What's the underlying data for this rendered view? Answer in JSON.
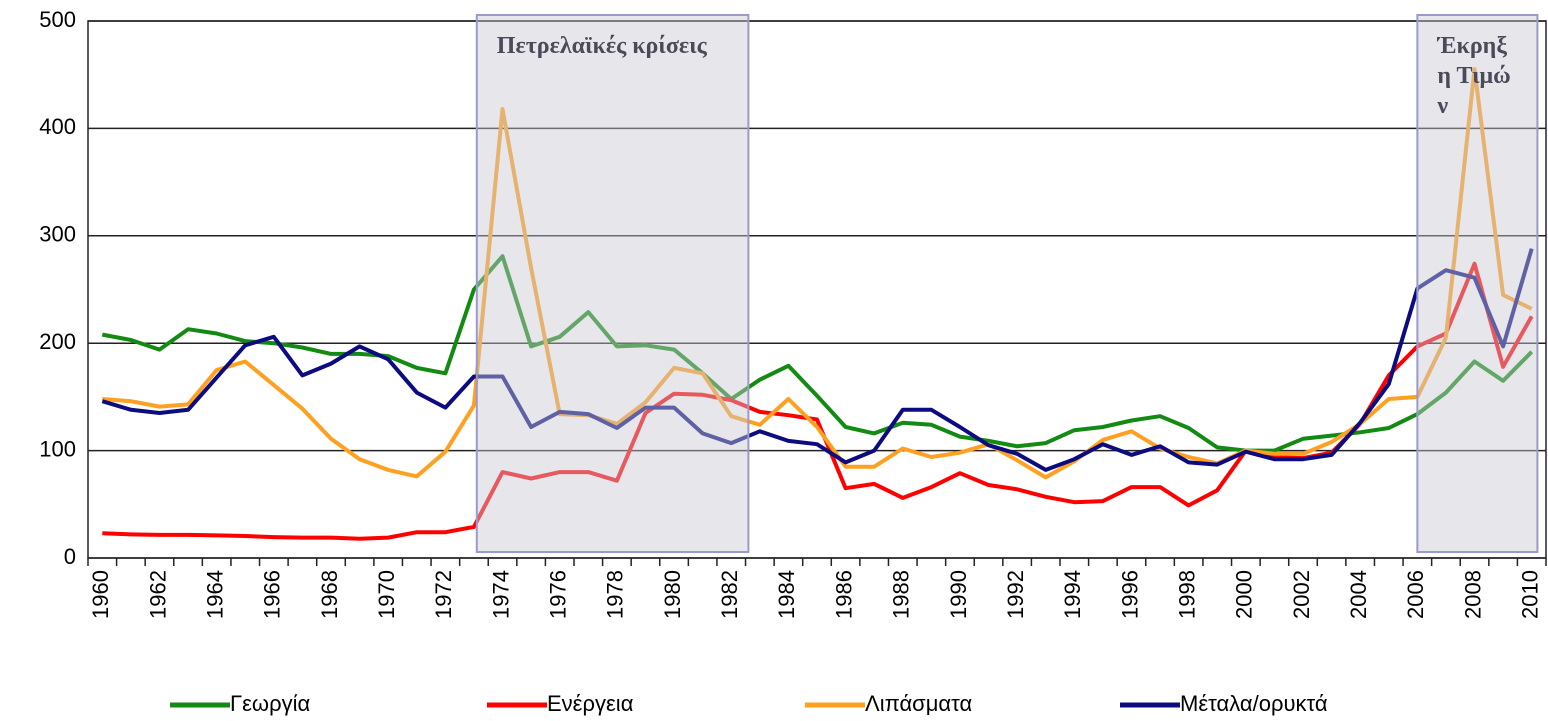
{
  "chart_data": {
    "type": "line",
    "categories": [
      "1960",
      null,
      "1962",
      null,
      "1964",
      null,
      "1966",
      null,
      "1968",
      null,
      "1970",
      null,
      "1972",
      null,
      "1974",
      null,
      "1976",
      null,
      "1978",
      null,
      "1980",
      null,
      "1982",
      null,
      "1984",
      null,
      "1986",
      null,
      "1988",
      null,
      "1990",
      null,
      "1992",
      null,
      "1994",
      null,
      "1996",
      null,
      "1998",
      null,
      "2000",
      null,
      "2002",
      null,
      "2004",
      null,
      "2006",
      null,
      "2008",
      null,
      "2010"
    ],
    "series": [
      {
        "name": "Γεωργία",
        "color": "#138a12",
        "values": [
          208,
          203,
          194,
          213,
          209,
          202,
          200,
          196,
          190,
          190,
          188,
          177,
          172,
          250,
          281,
          197,
          206,
          229,
          197,
          198,
          194,
          172,
          148,
          166,
          179,
          151,
          122,
          116,
          126,
          124,
          113,
          109,
          104,
          107,
          119,
          122,
          128,
          132,
          121,
          103,
          100,
          100,
          111,
          114,
          117,
          121,
          134,
          154,
          183,
          165,
          192
        ]
      },
      {
        "name": "Ενέργεια",
        "color": "#ff0000",
        "values": [
          23,
          22,
          21.5,
          21.5,
          21,
          20.5,
          19.5,
          19,
          19,
          18,
          19,
          24,
          24,
          29,
          80,
          74,
          80,
          80,
          72,
          135,
          153,
          152,
          147,
          136,
          133,
          129,
          65,
          69,
          56,
          66,
          79,
          68,
          64,
          57,
          52,
          53,
          66,
          66,
          49,
          63,
          100,
          94,
          93,
          98,
          125,
          170,
          197,
          209,
          274,
          178,
          225
        ]
      },
      {
        "name": "Λιπάσματα",
        "color": "#ffa020",
        "values": [
          148,
          146,
          141,
          143,
          175,
          183,
          161,
          139,
          111,
          92,
          82,
          76,
          99,
          142,
          418,
          270,
          134,
          133,
          125,
          145,
          177,
          172,
          132,
          124,
          148,
          122,
          85,
          85,
          102,
          94,
          98,
          106,
          91,
          75,
          90,
          110,
          118,
          102,
          94,
          88,
          100,
          97,
          97,
          108,
          125,
          148,
          150,
          205,
          455,
          245,
          232
        ]
      },
      {
        "name": "Μέταλα/ορυκτά",
        "color": "#0c0c80",
        "values": [
          146,
          138,
          135,
          138,
          168,
          198,
          206,
          170,
          181,
          197,
          185,
          154,
          140,
          169,
          169,
          122,
          136,
          134,
          121,
          140,
          140,
          116,
          107,
          118,
          109,
          106,
          89,
          100,
          138,
          138,
          122,
          105,
          97,
          82,
          92,
          106,
          96,
          104,
          89,
          87,
          99,
          92,
          92,
          96,
          126,
          162,
          251,
          268,
          261,
          197,
          288
        ]
      }
    ],
    "ylim": [
      0,
      500
    ],
    "yticks": [
      0,
      100,
      200,
      300,
      400,
      500
    ],
    "grid": true,
    "legend": "bottom",
    "annotations": [
      {
        "text": "Πετρελαϊκές κρίσεις",
        "x_range": [
          1973.1,
          1982.6
        ]
      },
      {
        "text": "Έκρηξη Τιμών",
        "x_range": [
          2006,
          2010.2
        ]
      }
    ]
  }
}
